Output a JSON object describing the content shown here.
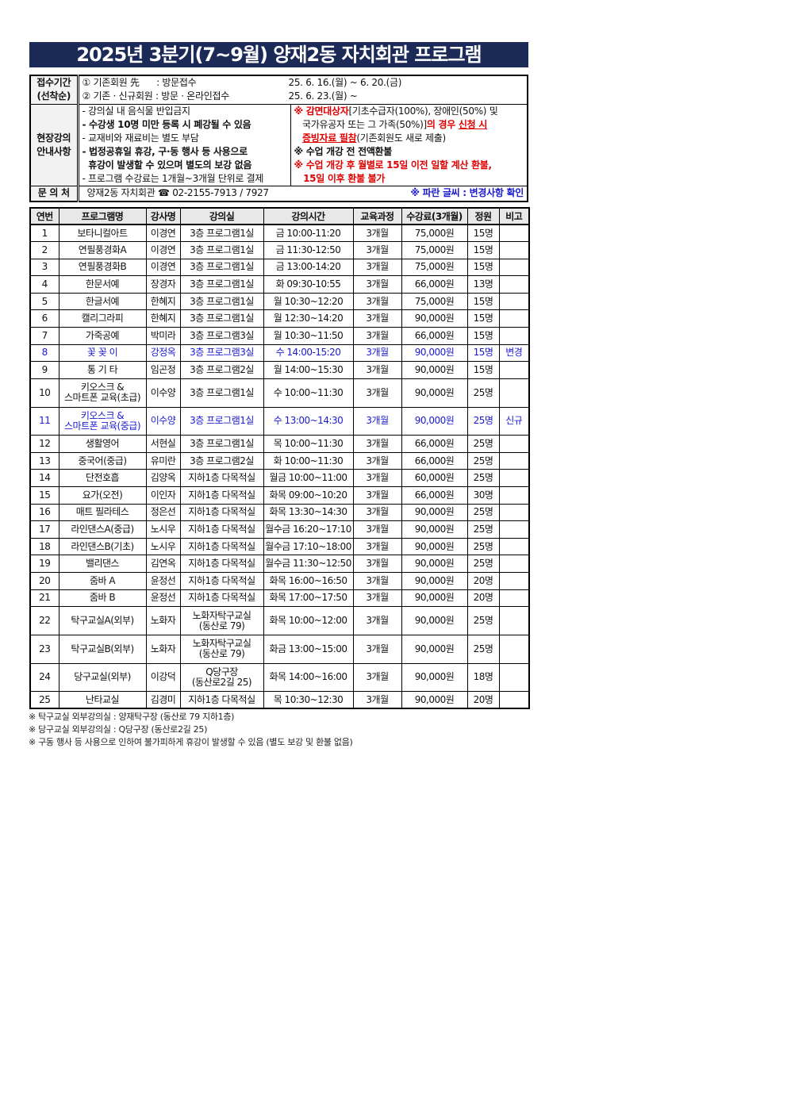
{
  "title": "2025년 3분기(7~9월) 양재2동 자치회관 프로그램",
  "info": {
    "reception_label": [
      "접수기간",
      "(선착순)"
    ],
    "reception_lines": [
      {
        "who": "① 기존회원 先",
        "sep": " : 방문접수",
        "date": "25. 6. 16.(월) ~ 6. 20.(금)"
      },
      {
        "who": "② 기존 · 신규회원",
        "sep": " : 방문 · 온라인접수",
        "date": "25. 6. 23.(월) ~"
      }
    ],
    "guide_label": [
      "현장강의",
      "안내사항"
    ],
    "guide_left": [
      [
        {
          "t": "- 강의실 내 음식물 반입금지",
          "s": ""
        }
      ],
      [
        {
          "t": "- 수강생 10명 미만 등록 시 폐강될 수 있음",
          "s": "b"
        }
      ],
      [
        {
          "t": "- 교재비와 재료비는 별도 부담",
          "s": ""
        }
      ],
      [
        {
          "t": "- 법정공휴일 휴강, 구·동 행사 등 사용으로",
          "s": "b"
        }
      ],
      [
        {
          "t": "  휴강이 발생할 수 있으며 별도의 보강 없음",
          "s": "b"
        }
      ],
      [
        {
          "t": "- 프로그램 수강료는 1개월~3개월 단위로 결제",
          "s": ""
        }
      ]
    ],
    "guide_right": [
      [
        {
          "t": "※ ",
          "s": "red b"
        },
        {
          "t": "감면대상자",
          "s": "red b"
        },
        {
          "t": "[기초수급자(100%), 장애인(50%) 및",
          "s": ""
        }
      ],
      [
        {
          "t": "   국가유공자 또는 그 가족(50%)]",
          "s": ""
        },
        {
          "t": "의 경우 ",
          "s": "red b"
        },
        {
          "t": "신청 시",
          "s": "red b u"
        }
      ],
      [
        {
          "t": "   ",
          "s": ""
        },
        {
          "t": "증빙자료 필참",
          "s": "red b u"
        },
        {
          "t": "(기존회원도 새로 제출)",
          "s": ""
        }
      ],
      [
        {
          "t": "※ 수업 개강 전 전액환불",
          "s": "b"
        }
      ],
      [
        {
          "t": "※ 수업 개강 후 월별로 15일 이전 일할 계산 환불,",
          "s": "red b"
        }
      ],
      [
        {
          "t": "   15일 이후 환불 불가",
          "s": "red b"
        }
      ]
    ],
    "contact_label": "문 의 처",
    "contact": "양재2동 자치회관 ☎ 02-2155-7913 / 7927",
    "blue_note": "※ 파란 글씨 : 변경사항 확인"
  },
  "table": {
    "headers": [
      "연번",
      "프로그램명",
      "강사명",
      "강의실",
      "강의시간",
      "교육과정",
      "수강료(3개월)",
      "정원",
      "비고"
    ],
    "rows": [
      [
        "1",
        "보타니컬아트",
        "이경연",
        "3층 프로그램1실",
        "금 10:00-11:20",
        "3개월",
        "75,000원",
        "15명",
        ""
      ],
      [
        "2",
        "연필풍경화A",
        "이경연",
        "3층 프로그램1실",
        "금 11:30-12:50",
        "3개월",
        "75,000원",
        "15명",
        ""
      ],
      [
        "3",
        "연필풍경화B",
        "이경연",
        "3층 프로그램1실",
        "금 13:00-14:20",
        "3개월",
        "75,000원",
        "15명",
        ""
      ],
      [
        "4",
        "한문서예",
        "장경자",
        "3층 프로그램1실",
        "화 09:30-10:55",
        "3개월",
        "66,000원",
        "13명",
        ""
      ],
      [
        "5",
        "한글서예",
        "한혜지",
        "3층 프로그램1실",
        "월 10:30~12:20",
        "3개월",
        "75,000원",
        "15명",
        ""
      ],
      [
        "6",
        "캘리그라피",
        "한혜지",
        "3층 프로그램1실",
        "월 12:30~14:20",
        "3개월",
        "90,000원",
        "15명",
        ""
      ],
      [
        "7",
        "가죽공예",
        "박미라",
        "3층 프로그램3실",
        "월 10:30~11:50",
        "3개월",
        "66,000원",
        "15명",
        ""
      ],
      [
        "8",
        "꽃 꽂 이",
        "강정옥",
        "3층 프로그램3실",
        "수 14:00-15:20",
        "3개월",
        "90,000원",
        "15명",
        "변경"
      ],
      [
        "9",
        "통 기 타",
        "임곤정",
        "3층 프로그램2실",
        "월 14:00~15:30",
        "3개월",
        "90,000원",
        "15명",
        ""
      ],
      [
        "10",
        "키오스크 &\n스마트폰 교육(초급)",
        "이수양",
        "3층 프로그램1실",
        "수 10:00~11:30",
        "3개월",
        "90,000원",
        "25명",
        ""
      ],
      [
        "11",
        "키오스크 &\n스마트폰 교육(중급)",
        "이수양",
        "3층 프로그램1실",
        "수 13:00~14:30",
        "3개월",
        "90,000원",
        "25명",
        "신규"
      ],
      [
        "12",
        "생활영어",
        "서현실",
        "3층 프로그램1실",
        "목 10:00~11:30",
        "3개월",
        "66,000원",
        "25명",
        ""
      ],
      [
        "13",
        "중국어(중급)",
        "유미란",
        "3층 프로그램2실",
        "화 10:00~11:30",
        "3개월",
        "66,000원",
        "25명",
        ""
      ],
      [
        "14",
        "단전호흡",
        "김양옥",
        "지하1층 다목적실",
        "월금 10:00~11:00",
        "3개월",
        "60,000원",
        "25명",
        ""
      ],
      [
        "15",
        "요가(오전)",
        "이인자",
        "지하1층 다목적실",
        "화목 09:00~10:20",
        "3개월",
        "66,000원",
        "30명",
        ""
      ],
      [
        "16",
        "매트 필라테스",
        "정은선",
        "지하1층 다목적실",
        "화목 13:30~14:30",
        "3개월",
        "90,000원",
        "25명",
        ""
      ],
      [
        "17",
        "라인댄스A(중급)",
        "노시우",
        "지하1층 다목적실",
        "월수금 16:20~17:10",
        "3개월",
        "90,000원",
        "25명",
        ""
      ],
      [
        "18",
        "라인댄스B(기초)",
        "노시우",
        "지하1층 다목적실",
        "월수금 17:10~18:00",
        "3개월",
        "90,000원",
        "25명",
        ""
      ],
      [
        "19",
        "밸리댄스",
        "김연옥",
        "지하1층 다목적실",
        "월수금 11:30~12:50",
        "3개월",
        "90,000원",
        "25명",
        ""
      ],
      [
        "20",
        "줌바 A",
        "윤정선",
        "지하1층 다목적실",
        "화목 16:00~16:50",
        "3개월",
        "90,000원",
        "20명",
        ""
      ],
      [
        "21",
        "줌바 B",
        "윤정선",
        "지하1층 다목적실",
        "화목 17:00~17:50",
        "3개월",
        "90,000원",
        "20명",
        ""
      ],
      [
        "22",
        "탁구교실A(외부)",
        "노화자",
        "노화자탁구교실\n(동산로 79)",
        "화목 10:00~12:00",
        "3개월",
        "90,000원",
        "25명",
        ""
      ],
      [
        "23",
        "탁구교실B(외부)",
        "노화자",
        "노화자탁구교실\n(동산로 79)",
        "화금 13:00~15:00",
        "3개월",
        "90,000원",
        "25명",
        ""
      ],
      [
        "24",
        "당구교실(외부)",
        "이강덕",
        "Q당구장\n(동산로2길 25)",
        "화목 14:00~16:00",
        "3개월",
        "90,000원",
        "18명",
        ""
      ],
      [
        "25",
        "난타교실",
        "김경미",
        "지하1층 다목적실",
        "목 10:30~12:30",
        "3개월",
        "90,000원",
        "20명",
        ""
      ]
    ],
    "highlight_rows": [
      "8",
      "11"
    ],
    "highlight_color": "#1a1ad0"
  },
  "notes": [
    "※ 탁구교실 외부강의실 : 양재탁구장 (동산로 79 지하1층)",
    "※ 당구교실 외부강의실 : Q당구장 (동산로2길 25)",
    "※ 구동 행사 등 사용으로 인하여 불가피하게 휴강이 발생할 수 있음 (별도 보강 및 환불 없음)"
  ]
}
